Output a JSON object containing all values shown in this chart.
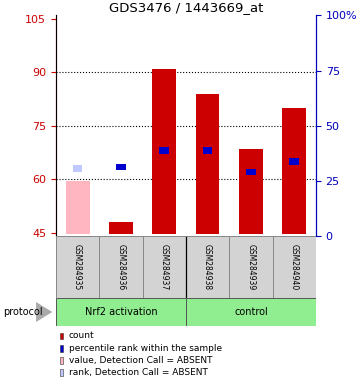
{
  "title": "GDS3476 / 1443669_at",
  "samples": [
    "GSM284935",
    "GSM284936",
    "GSM284937",
    "GSM284938",
    "GSM284939",
    "GSM284940"
  ],
  "ylim_left": [
    44,
    106
  ],
  "yticks_left": [
    45,
    60,
    75,
    90,
    105
  ],
  "yticks_right": [
    0,
    25,
    50,
    75,
    100
  ],
  "bar_bottoms": [
    44.5,
    44.5,
    44.5,
    44.5,
    44.5,
    44.5
  ],
  "bar_tops": [
    59.5,
    48.0,
    91.0,
    84.0,
    68.5,
    80.0
  ],
  "bar_colors": [
    "#ffb6c1",
    "#cc0000",
    "#cc0000",
    "#cc0000",
    "#cc0000",
    "#cc0000"
  ],
  "percentile_y": [
    63.0,
    63.5,
    68.0,
    68.0,
    62.0,
    65.0
  ],
  "percentile_absent": [
    true,
    false,
    false,
    false,
    false,
    false
  ],
  "groups": [
    {
      "label": "Nrf2 activation",
      "start": 0,
      "end": 3,
      "color": "#90ee90"
    },
    {
      "label": "control",
      "start": 3,
      "end": 6,
      "color": "#90ee90"
    }
  ],
  "legend_items": [
    {
      "label": "count",
      "color": "#cc0000"
    },
    {
      "label": "percentile rank within the sample",
      "color": "#0000cc"
    },
    {
      "label": "value, Detection Call = ABSENT",
      "color": "#ffb6c1"
    },
    {
      "label": "rank, Detection Call = ABSENT",
      "color": "#c0c8ff"
    }
  ],
  "left_axis_color": "#cc0000",
  "right_axis_color": "#0000bb",
  "bg_color": "#ffffff",
  "sample_bg_color": "#d3d3d3",
  "sample_border_color": "#888888"
}
